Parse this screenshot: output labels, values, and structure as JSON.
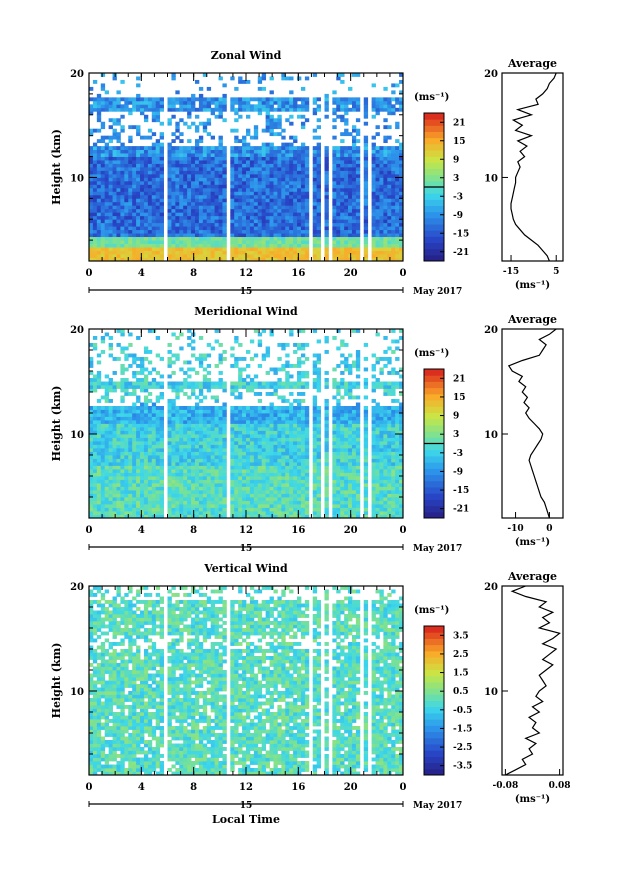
{
  "figure": {
    "xlabel": "Local Time",
    "date_label": "May 2017",
    "day_label": "15",
    "unit_label": "(ms⁻¹)"
  },
  "chart_data": [
    {
      "type": "heatmap",
      "title": "Zonal Wind",
      "ylabel": "Height (km)",
      "x_ticks": [
        "0",
        "4",
        "8",
        "12",
        "16",
        "20",
        "0"
      ],
      "xlim": [
        0,
        24
      ],
      "y_ticks": [
        "20",
        "10"
      ],
      "ylim": [
        2,
        20
      ],
      "colorbar": {
        "unit": "(ms⁻¹)",
        "ticks": [
          "21",
          "15",
          "9",
          "3",
          "-3",
          "-9",
          "-15",
          "-21"
        ],
        "range": [
          -24,
          24
        ],
        "contour": 0
      },
      "profile": {
        "title": "Average",
        "x_ticks": [
          "-15",
          "5"
        ],
        "xlim": [
          -19,
          8
        ],
        "xlabel": "(ms⁻¹)",
        "height": [
          2,
          2.5,
          3,
          3.5,
          4,
          4.5,
          5,
          5.5,
          6,
          6.5,
          7,
          7.5,
          8,
          8.5,
          9,
          9.5,
          10,
          10.5,
          11,
          11.5,
          12,
          12.5,
          13,
          13.5,
          14,
          14.5,
          15,
          15.5,
          16,
          16.5,
          17,
          17.5,
          18,
          18.5,
          19,
          19.5,
          20
        ],
        "value": [
          2,
          1,
          -1,
          -3,
          -6,
          -9,
          -11,
          -13,
          -14,
          -14.5,
          -15,
          -15,
          -14.5,
          -14,
          -13.5,
          -13,
          -13,
          -12,
          -11,
          -12,
          -9,
          -11,
          -8,
          -12,
          -6,
          -13,
          -10,
          -14,
          -6,
          -12,
          -3,
          -4,
          -1,
          1,
          2,
          4,
          5
        ]
      }
    },
    {
      "type": "heatmap",
      "title": "Meridional Wind",
      "ylabel": "Height (km)",
      "x_ticks": [
        "0",
        "4",
        "8",
        "12",
        "16",
        "20",
        "0"
      ],
      "xlim": [
        0,
        24
      ],
      "y_ticks": [
        "20",
        "10"
      ],
      "ylim": [
        2,
        20
      ],
      "colorbar": {
        "unit": "(ms⁻¹)",
        "ticks": [
          "21",
          "15",
          "9",
          "3",
          "-3",
          "-9",
          "-15",
          "-21"
        ],
        "range": [
          -24,
          24
        ],
        "contour": 0
      },
      "profile": {
        "title": "Average",
        "x_ticks": [
          "-10",
          "0"
        ],
        "xlim": [
          -14,
          4
        ],
        "xlabel": "(ms⁻¹)",
        "height": [
          2,
          2.5,
          3,
          3.5,
          4,
          4.5,
          5,
          5.5,
          6,
          6.5,
          7,
          7.5,
          8,
          8.5,
          9,
          9.5,
          10,
          10.5,
          11,
          11.5,
          12,
          12.5,
          13,
          13.5,
          14,
          14.5,
          15,
          15.5,
          16,
          16.5,
          17,
          17.5,
          18,
          18.5,
          19,
          19.5,
          20
        ],
        "value": [
          0,
          -0.5,
          -1,
          -1.5,
          -2.5,
          -3,
          -3.5,
          -4,
          -4.5,
          -5,
          -5.5,
          -6,
          -5.5,
          -4.5,
          -3.5,
          -2.5,
          -2,
          -3,
          -4.5,
          -6,
          -7,
          -6,
          -7.5,
          -6.5,
          -8,
          -7,
          -9,
          -8,
          -11,
          -12,
          -8,
          -3,
          -2,
          -1,
          -3,
          0,
          2
        ]
      }
    },
    {
      "type": "heatmap",
      "title": "Vertical Wind",
      "ylabel": "Height (km)",
      "x_ticks": [
        "0",
        "4",
        "8",
        "12",
        "16",
        "20",
        "0"
      ],
      "xlim": [
        0,
        24
      ],
      "y_ticks": [
        "20",
        "10"
      ],
      "ylim": [
        2,
        20
      ],
      "colorbar": {
        "unit": "(ms⁻¹)",
        "ticks": [
          "3.5",
          "2.5",
          "1.5",
          "0.5",
          "-0.5",
          "-1.5",
          "-2.5",
          "-3.5"
        ],
        "range": [
          -4,
          4
        ],
        "contour": null
      },
      "profile": {
        "title": "Average",
        "x_ticks": [
          "-0.08",
          "0.08"
        ],
        "xlim": [
          -0.09,
          0.09
        ],
        "xlabel": "(ms⁻¹)",
        "height": [
          2,
          2.5,
          3,
          3.5,
          4,
          4.5,
          5,
          5.5,
          6,
          6.5,
          7,
          7.5,
          8,
          8.5,
          9,
          9.5,
          10,
          10.5,
          11,
          11.5,
          12,
          12.5,
          13,
          13.5,
          14,
          14.5,
          15,
          15.5,
          16,
          16.5,
          17,
          17.5,
          18,
          18.5,
          19,
          19.5,
          20
        ],
        "value": [
          -0.08,
          -0.05,
          -0.02,
          -0.03,
          0,
          -0.01,
          0.01,
          -0.02,
          0.02,
          0,
          0.01,
          -0.01,
          0.02,
          0,
          0.03,
          0.01,
          0.02,
          0.04,
          0.03,
          0.02,
          0.04,
          0.06,
          0.03,
          0.05,
          0.07,
          0.03,
          0.06,
          0.08,
          0.02,
          0.05,
          0.03,
          0.06,
          0.02,
          0.04,
          -0.02,
          -0.06,
          -0.02
        ]
      }
    }
  ]
}
